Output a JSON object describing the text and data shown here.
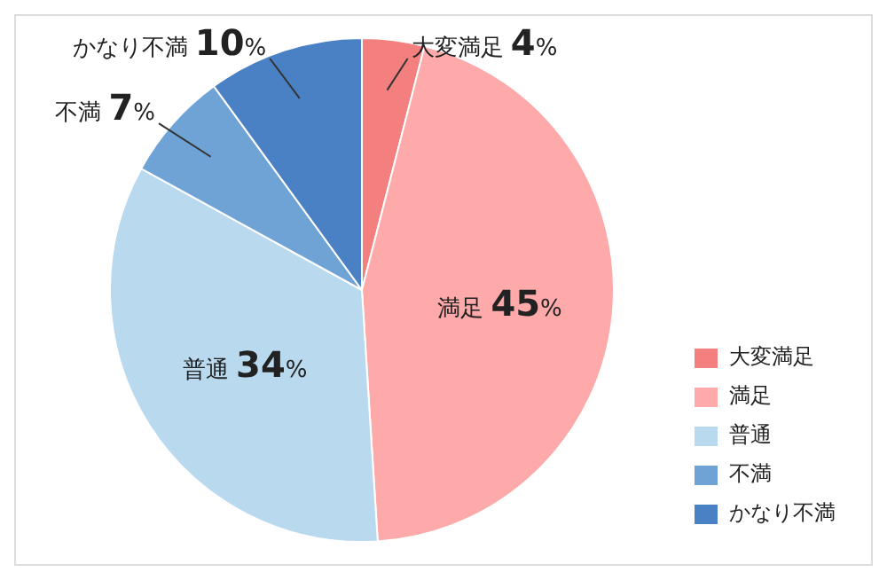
{
  "chart_data": {
    "type": "pie",
    "categories": [
      "大変満足",
      "満足",
      "普通",
      "不満",
      "かなり不満"
    ],
    "values": [
      4,
      45,
      34,
      7,
      10
    ],
    "colors": [
      "#f47f7f",
      "#ffaaaa",
      "#b9d9ef",
      "#6fa3d6",
      "#4a80c4"
    ],
    "value_labels": [
      "4%",
      "45%",
      "34%",
      "7%",
      "10%"
    ],
    "legend": "bottom right"
  }
}
